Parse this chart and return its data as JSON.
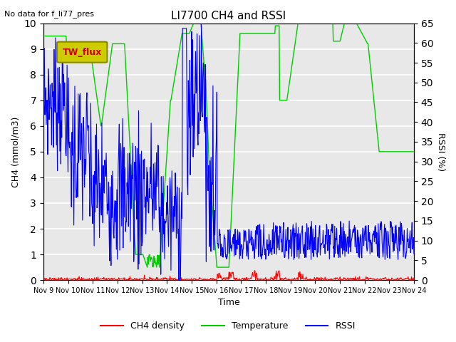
{
  "title": "LI7700 CH4 and RSSI",
  "subtitle": "No data for f_li77_pres",
  "xlabel": "Time",
  "ylabel_left": "CH4 (mmol/m3)",
  "ylabel_right": "RSSI (%)",
  "legend_label": "TW_flux",
  "ylim_left": [
    0,
    10.0
  ],
  "ylim_right": [
    0,
    65
  ],
  "yticks_left": [
    0.0,
    1.0,
    2.0,
    3.0,
    4.0,
    5.0,
    6.0,
    7.0,
    8.0,
    9.0,
    10.0
  ],
  "yticks_right": [
    0,
    5,
    10,
    15,
    20,
    25,
    30,
    35,
    40,
    45,
    50,
    55,
    60,
    65
  ],
  "xtick_labels": [
    "Nov 9",
    "Nov 10",
    "Nov 11",
    "Nov 12",
    "Nov 13",
    "Nov 14",
    "Nov 15",
    "Nov 16",
    "Nov 17",
    "Nov 18",
    "Nov 19",
    "Nov 20",
    "Nov 21",
    "Nov 22",
    "Nov 23",
    "Nov 24"
  ],
  "color_ch4": "#ff0000",
  "color_temp": "#00cc00",
  "color_rssi": "#0000ff",
  "background_color": "#e8e8e8",
  "legend_box_facecolor": "#cccc00",
  "legend_box_edgecolor": "#888800",
  "legend_box_text_color": "#cc0000",
  "grid_color": "#ffffff",
  "n_days": 16
}
